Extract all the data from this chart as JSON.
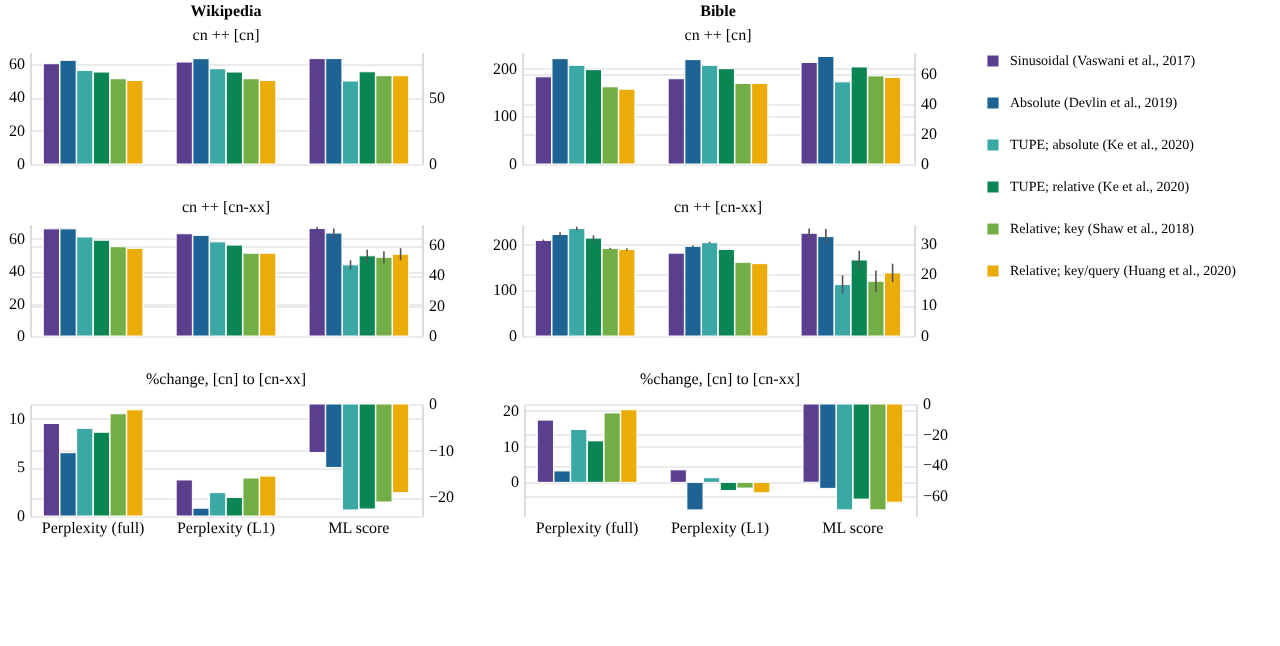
{
  "chart_data": [
    {
      "type": "bar",
      "title": "Wikipedia",
      "subtitle": "cn ++ [cn]",
      "legend": "right",
      "grid": "y",
      "categories": [
        null,
        null,
        null
      ],
      "ylim": [
        0,
        67
      ],
      "yticks": [
        0,
        20,
        40,
        60
      ],
      "y2lim": [
        0,
        85
      ],
      "y2ticks": [
        0,
        50
      ],
      "series": [
        {
          "name": "Sinusoidal (Vaswani et al., 2017)",
          "color": "#5b3f8e",
          "values": [
            60,
            61,
            null
          ]
        },
        {
          "name": "Absolute (Devlin et al., 2019)",
          "color": "#1d6394",
          "values": [
            62,
            63,
            null
          ]
        },
        {
          "name": "TUPE; absolute (Ke et al., 2020)",
          "color": "#3ba8a6",
          "values": [
            56,
            57,
            null
          ]
        },
        {
          "name": "TUPE; relative (Ke et al., 2020)",
          "color": "#0b8553",
          "values": [
            55,
            55,
            null
          ]
        },
        {
          "name": "Relative; key (Shaw et al., 2018)",
          "color": "#72ad46",
          "values": [
            51,
            51,
            null
          ]
        },
        {
          "name": "Relative; key/query (Huang et al., 2020)",
          "color": "#ecac07",
          "values": [
            50,
            50,
            null
          ]
        },
        {
          "color": "#5b3f8e",
          "axis": "y2",
          "values": [
            null,
            null,
            80
          ]
        },
        {
          "color": "#1d6394",
          "axis": "y2",
          "values": [
            null,
            null,
            80
          ]
        },
        {
          "color": "#3ba8a6",
          "axis": "y2",
          "values": [
            null,
            null,
            63
          ]
        },
        {
          "color": "#0b8553",
          "axis": "y2",
          "values": [
            null,
            null,
            70
          ]
        },
        {
          "color": "#72ad46",
          "axis": "y2",
          "values": [
            null,
            null,
            67
          ]
        },
        {
          "color": "#ecac07",
          "axis": "y2",
          "values": [
            null,
            null,
            67
          ]
        }
      ]
    },
    {
      "type": "bar",
      "title": "Bible",
      "subtitle": "cn ++ [cn]",
      "grid": "y",
      "categories": [
        null,
        null,
        null
      ],
      "ylim": [
        0,
        235
      ],
      "yticks": [
        0,
        100,
        200
      ],
      "y2lim": [
        0,
        75
      ],
      "y2ticks": [
        0,
        20,
        40,
        60
      ],
      "series": [
        {
          "color": "#5b3f8e",
          "values": [
            183,
            179,
            null
          ]
        },
        {
          "color": "#1d6394",
          "values": [
            221,
            219,
            null
          ]
        },
        {
          "color": "#3ba8a6",
          "values": [
            207,
            207,
            null
          ]
        },
        {
          "color": "#0b8553",
          "values": [
            198,
            200,
            null
          ]
        },
        {
          "color": "#72ad46",
          "values": [
            162,
            169,
            null
          ]
        },
        {
          "color": "#ecac07",
          "values": [
            157,
            169,
            null
          ]
        },
        {
          "color": "#5b3f8e",
          "axis": "y2",
          "values": [
            null,
            null,
            68
          ]
        },
        {
          "color": "#1d6394",
          "axis": "y2",
          "values": [
            null,
            null,
            72
          ]
        },
        {
          "color": "#3ba8a6",
          "axis": "y2",
          "values": [
            null,
            null,
            55
          ]
        },
        {
          "color": "#0b8553",
          "axis": "y2",
          "values": [
            null,
            null,
            65
          ]
        },
        {
          "color": "#72ad46",
          "axis": "y2",
          "values": [
            null,
            null,
            59
          ]
        },
        {
          "color": "#ecac07",
          "axis": "y2",
          "values": [
            null,
            null,
            58
          ]
        }
      ]
    },
    {
      "type": "bar",
      "title": "cn ++ [cn-xx]",
      "grid": "y",
      "categories": [
        null,
        null,
        null
      ],
      "ylim": [
        0,
        69
      ],
      "yticks": [
        0,
        20,
        40,
        60
      ],
      "y2lim": [
        0,
        74
      ],
      "y2ticks": [
        0,
        20,
        40,
        60
      ],
      "series": [
        {
          "color": "#5b3f8e",
          "values": [
            66,
            63,
            null
          ]
        },
        {
          "color": "#1d6394",
          "values": [
            66,
            62,
            null
          ]
        },
        {
          "color": "#3ba8a6",
          "values": [
            61,
            58,
            null
          ]
        },
        {
          "color": "#0b8553",
          "values": [
            59,
            56,
            null
          ]
        },
        {
          "color": "#72ad46",
          "values": [
            55,
            51,
            null
          ]
        },
        {
          "color": "#ecac07",
          "values": [
            54,
            51,
            null
          ]
        },
        {
          "color": "#5b3f8e",
          "axis": "y2",
          "values": [
            null,
            null,
            71
          ],
          "errors": [
            null,
            null,
            1
          ]
        },
        {
          "color": "#1d6394",
          "axis": "y2",
          "values": [
            null,
            null,
            68
          ],
          "errors": [
            null,
            null,
            3
          ]
        },
        {
          "color": "#3ba8a6",
          "axis": "y2",
          "values": [
            null,
            null,
            47
          ],
          "errors": [
            null,
            null,
            3
          ]
        },
        {
          "color": "#0b8553",
          "axis": "y2",
          "values": [
            null,
            null,
            53
          ],
          "errors": [
            null,
            null,
            4
          ]
        },
        {
          "color": "#72ad46",
          "axis": "y2",
          "values": [
            null,
            null,
            52
          ],
          "errors": [
            null,
            null,
            4
          ]
        },
        {
          "color": "#ecac07",
          "axis": "y2",
          "values": [
            null,
            null,
            54
          ],
          "errors": [
            null,
            null,
            4
          ]
        }
      ]
    },
    {
      "type": "bar",
      "title": "cn ++ [cn-xx]",
      "grid": "y",
      "categories": [
        null,
        null,
        null
      ],
      "ylim": [
        0,
        246
      ],
      "yticks": [
        0,
        100,
        200
      ],
      "y2lim": [
        0,
        36.4
      ],
      "y2ticks": [
        0,
        10,
        20,
        30
      ],
      "series": [
        {
          "color": "#5b3f8e",
          "values": [
            210,
            182,
            null
          ],
          "errors": [
            2,
            null,
            null
          ]
        },
        {
          "color": "#1d6394",
          "values": [
            223,
            197,
            null
          ],
          "errors": [
            5,
            2,
            null
          ]
        },
        {
          "color": "#3ba8a6",
          "values": [
            236,
            205,
            null
          ],
          "errors": [
            4,
            2,
            null
          ]
        },
        {
          "color": "#0b8553",
          "values": [
            215,
            190,
            null
          ],
          "errors": [
            6,
            null,
            null
          ]
        },
        {
          "color": "#72ad46",
          "values": [
            192,
            162,
            null
          ],
          "errors": [
            2,
            null,
            null
          ]
        },
        {
          "color": "#ecac07",
          "values": [
            190,
            159,
            null
          ],
          "errors": [
            2,
            null,
            null
          ]
        },
        {
          "color": "#5b3f8e",
          "axis": "y2",
          "values": [
            null,
            null,
            33.4
          ],
          "errors": [
            null,
            null,
            1.5
          ]
        },
        {
          "color": "#1d6394",
          "axis": "y2",
          "values": [
            null,
            null,
            32.3
          ],
          "errors": [
            null,
            null,
            2.5
          ]
        },
        {
          "color": "#3ba8a6",
          "axis": "y2",
          "values": [
            null,
            null,
            16.7
          ],
          "errors": [
            null,
            null,
            3
          ]
        },
        {
          "color": "#0b8553",
          "axis": "y2",
          "values": [
            null,
            null,
            24.7
          ],
          "errors": [
            null,
            null,
            3
          ]
        },
        {
          "color": "#72ad46",
          "axis": "y2",
          "values": [
            null,
            null,
            17.8
          ],
          "errors": [
            null,
            null,
            3.5
          ]
        },
        {
          "color": "#ecac07",
          "axis": "y2",
          "values": [
            null,
            null,
            20.5
          ],
          "errors": [
            null,
            null,
            3
          ]
        }
      ]
    },
    {
      "type": "bar",
      "title": "%change, [cn] to [cn-xx]",
      "grid": "y",
      "categories": [
        "Perplexity (full)",
        "Perplexity (L1)",
        "ML score"
      ],
      "ylim": [
        0,
        11.5
      ],
      "yticks": [
        0,
        5,
        10
      ],
      "y2lim": [
        -24,
        0
      ],
      "y2ticks": [
        -20,
        -10,
        0
      ],
      "series": [
        {
          "color": "#5b3f8e",
          "values": [
            9.5,
            3.7,
            null
          ]
        },
        {
          "color": "#1d6394",
          "values": [
            6.5,
            0.8,
            null
          ]
        },
        {
          "color": "#3ba8a6",
          "values": [
            9,
            2.4,
            null
          ]
        },
        {
          "color": "#0b8553",
          "values": [
            8.6,
            1.9,
            null
          ]
        },
        {
          "color": "#72ad46",
          "values": [
            10.5,
            3.9,
            null
          ]
        },
        {
          "color": "#ecac07",
          "values": [
            10.9,
            4.1,
            null
          ]
        },
        {
          "color": "#5b3f8e",
          "axis": "y2",
          "values": [
            null,
            null,
            -10.4
          ]
        },
        {
          "color": "#1d6394",
          "axis": "y2",
          "values": [
            null,
            null,
            -13.6
          ]
        },
        {
          "color": "#3ba8a6",
          "axis": "y2",
          "values": [
            null,
            null,
            -22.7
          ]
        },
        {
          "color": "#0b8553",
          "axis": "y2",
          "values": [
            null,
            null,
            -22.5
          ]
        },
        {
          "color": "#72ad46",
          "axis": "y2",
          "values": [
            null,
            null,
            -21
          ]
        },
        {
          "color": "#ecac07",
          "axis": "y2",
          "values": [
            null,
            null,
            -19
          ]
        }
      ]
    },
    {
      "type": "bar",
      "title": "%change, [cn] to [cn-xx]",
      "grid": "y",
      "categories": [
        "Perplexity (full)",
        "Perplexity (L1)",
        "ML score"
      ],
      "ylim": [
        -9.4,
        21.9
      ],
      "yticks": [
        0,
        10,
        20
      ],
      "y2lim": [
        -73,
        0
      ],
      "y2ticks": [
        -60,
        -40,
        -20,
        0
      ],
      "series": [
        {
          "color": "#5b3f8e",
          "values": [
            17.4,
            3.5,
            null
          ]
        },
        {
          "color": "#1d6394",
          "values": [
            3.2,
            -7.7,
            null
          ]
        },
        {
          "color": "#3ba8a6",
          "values": [
            14.8,
            1.3,
            null
          ]
        },
        {
          "color": "#0b8553",
          "values": [
            11.6,
            -2.3,
            null
          ]
        },
        {
          "color": "#72ad46",
          "values": [
            19.4,
            -1.6,
            null
          ]
        },
        {
          "color": "#ecac07",
          "values": [
            20.3,
            -2.9,
            null
          ]
        },
        {
          "color": "#5b3f8e",
          "axis": "y2",
          "values": [
            null,
            null,
            -51
          ]
        },
        {
          "color": "#1d6394",
          "axis": "y2",
          "values": [
            null,
            null,
            -55
          ]
        },
        {
          "color": "#3ba8a6",
          "axis": "y2",
          "values": [
            null,
            null,
            -69
          ]
        },
        {
          "color": "#0b8553",
          "axis": "y2",
          "values": [
            null,
            null,
            -62
          ]
        },
        {
          "color": "#72ad46",
          "axis": "y2",
          "values": [
            null,
            null,
            -69
          ]
        },
        {
          "color": "#ecac07",
          "axis": "y2",
          "values": [
            null,
            null,
            -64
          ]
        }
      ]
    }
  ]
}
